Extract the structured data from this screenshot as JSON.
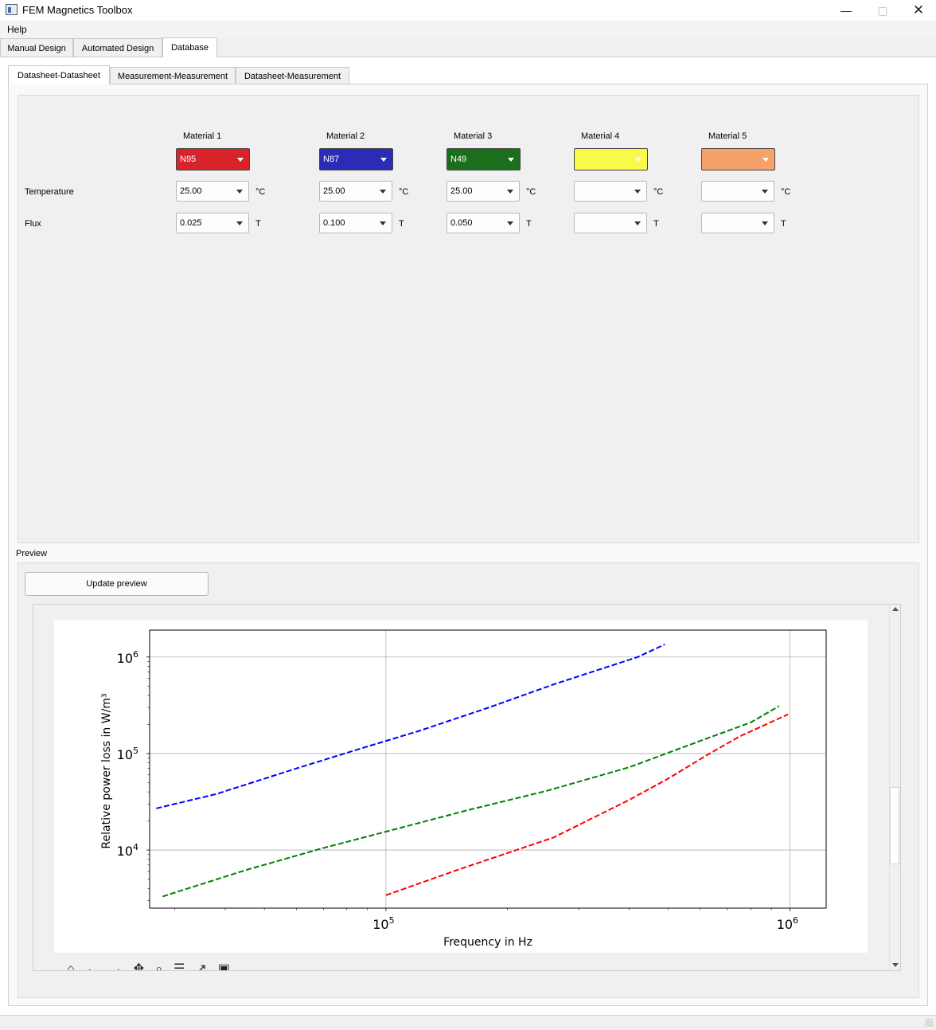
{
  "window": {
    "title": "FEM Magnetics Toolbox",
    "minimize_icon": "minimize-icon",
    "maximize_icon": "maximize-icon",
    "close_icon": "close-icon"
  },
  "menu": {
    "help": "Help"
  },
  "tabs": {
    "manual": "Manual Design",
    "automated": "Automated Design",
    "database": "Database"
  },
  "subtabs": {
    "ds_ds": "Datasheet-Datasheet",
    "m_m": "Measurement-Measurement",
    "ds_m": "Datasheet-Measurement"
  },
  "form": {
    "temperature_label": "Temperature",
    "flux_label": "Flux",
    "temp_unit": "°C",
    "flux_unit": "T",
    "materials": [
      {
        "label": "Material 1",
        "value": "N95",
        "color": "#d8232a",
        "text_color": "#ffffff",
        "temperature": "25.00",
        "flux": "0.025"
      },
      {
        "label": "Material 2",
        "value": "N87",
        "color": "#2b2bb5",
        "text_color": "#ffffff",
        "temperature": "25.00",
        "flux": "0.100"
      },
      {
        "label": "Material 3",
        "value": "N49",
        "color": "#1b6e1b",
        "text_color": "#ffffff",
        "temperature": "25.00",
        "flux": "0.050"
      },
      {
        "label": "Material 4",
        "value": "",
        "color": "#f9f94a",
        "text_color": "#000000",
        "temperature": "",
        "flux": ""
      },
      {
        "label": "Material 5",
        "value": "",
        "color": "#f6a06a",
        "text_color": "#000000",
        "temperature": "",
        "flux": ""
      }
    ]
  },
  "preview": {
    "label": "Preview",
    "update_button": "Update preview"
  },
  "chart_data": {
    "type": "line",
    "xlabel": "Frequency in Hz",
    "ylabel": "Relative power loss in W/m³",
    "xscale": "log",
    "yscale": "log",
    "xlim": [
      26000,
      1230000
    ],
    "ylim": [
      2500,
      1900000
    ],
    "xticks": [
      100000,
      1000000
    ],
    "yticks": [
      10000,
      100000,
      1000000
    ],
    "grid": true,
    "series": [
      {
        "color": "#0000ff",
        "style": "dashed",
        "x": [
          27000,
          38000,
          60000,
          85000,
          120000,
          180000,
          260000,
          420000,
          490000
        ],
        "y": [
          27000,
          38000,
          70000,
          110000,
          170000,
          300000,
          520000,
          1000000,
          1350000
        ]
      },
      {
        "color": "#008000",
        "style": "dashed",
        "x": [
          28000,
          45000,
          70000,
          100000,
          160000,
          250000,
          400000,
          600000,
          800000,
          940000
        ],
        "y": [
          3300,
          6200,
          10500,
          15500,
          26000,
          41000,
          72000,
          135000,
          210000,
          310000
        ]
      },
      {
        "color": "#ff0000",
        "style": "dashed",
        "x": [
          100000,
          150000,
          260000,
          400000,
          500000,
          620000,
          750000,
          990000
        ],
        "y": [
          3400,
          6200,
          13500,
          33000,
          55000,
          95000,
          150000,
          255000
        ]
      }
    ]
  }
}
